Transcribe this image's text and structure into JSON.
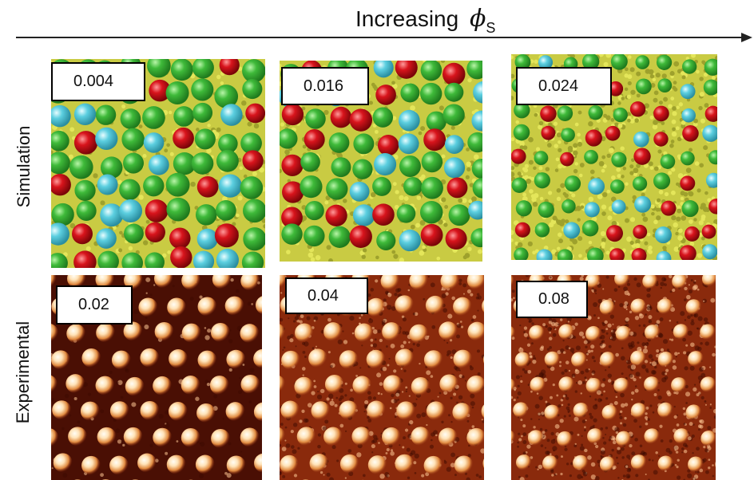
{
  "header": {
    "text": "Increasing",
    "symbol": "ϕ",
    "subscript": "S"
  },
  "rows": {
    "simulation_label": "Simulation",
    "experimental_label": "Experimental"
  },
  "simulation_values": [
    "0.004",
    "0.016",
    "0.024"
  ],
  "experimental_values": [
    "0.02",
    "0.04",
    "0.08"
  ],
  "colors": {
    "green": "#3fba3a",
    "red": "#d8141c",
    "cyan": "#5ccfe0",
    "yellow": "#d6d84a",
    "exp_bg_dark": "#4a0f04",
    "exp_bg": "#8a2a0c",
    "exp_dot": "#ffe3b8"
  }
}
